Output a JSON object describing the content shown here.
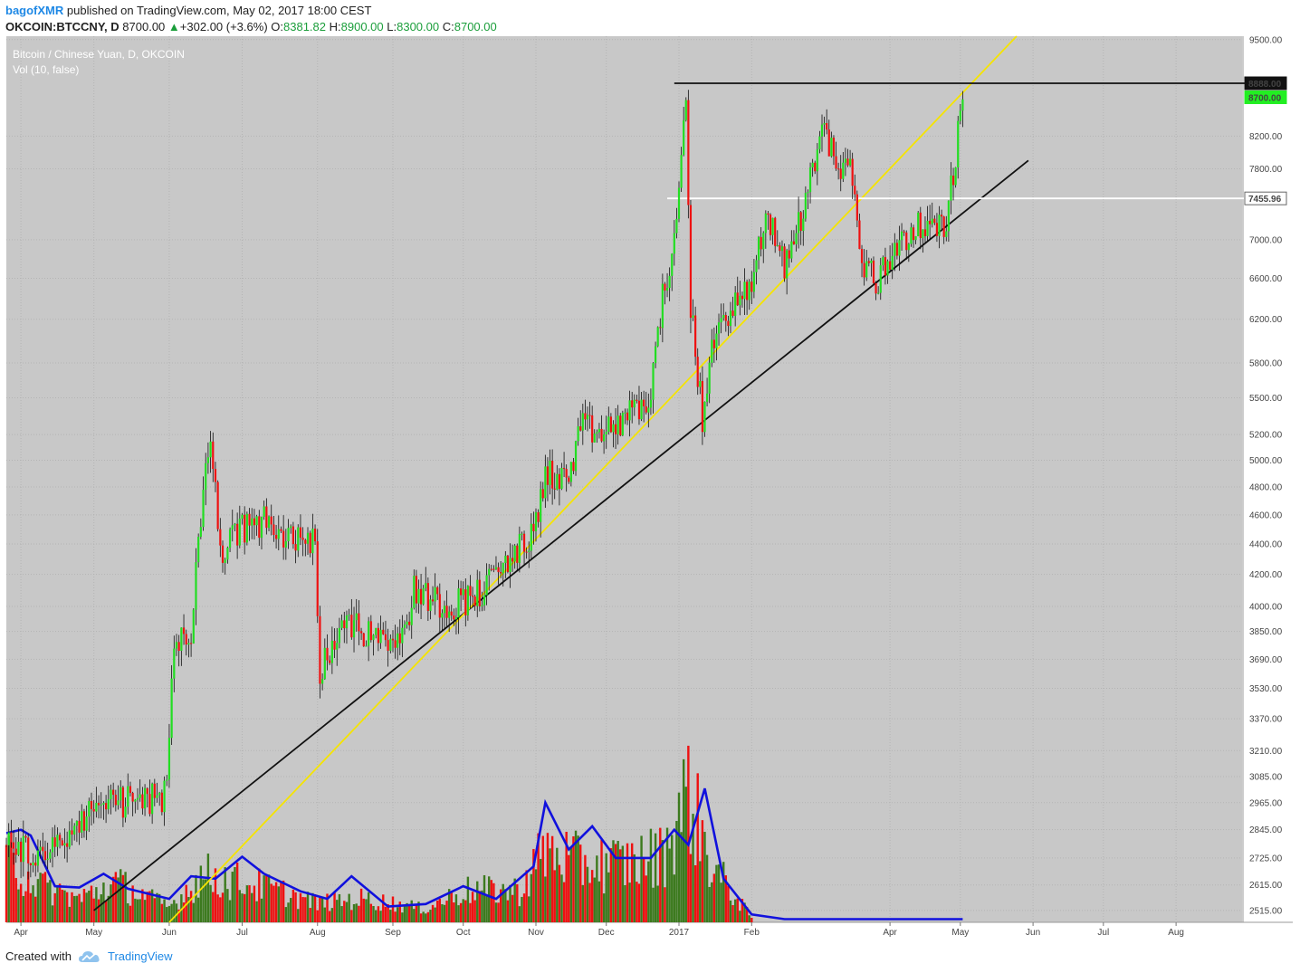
{
  "header": {
    "user": "bagofXMR",
    "text": " published on TradingView.com, May 02, 2017 18:00 CEST"
  },
  "quote": {
    "symbol": "OKCOIN:BTCCNY, D",
    "last": "8700.00",
    "change": "+302.00 (+3.6%)",
    "open": "8381.82",
    "high": "8900.00",
    "low": "8300.00",
    "close": "8700.00",
    "o_label": "O:",
    "h_label": "H:",
    "l_label": "L:",
    "c_label": "C:"
  },
  "chart_title": "Bitcoin / Chinese Yuan, D, OKCOIN",
  "vol_title": "Vol (10, false)",
  "footer": {
    "created_with": "Created with",
    "brand": "TradingView"
  },
  "colors": {
    "plot_bg": "#c8c8c8",
    "up": "#22dd22",
    "down": "#ee1111",
    "vol_up": "#3c7a1e",
    "vol_down": "#ee1111",
    "vol_ma": "#1111dd",
    "trend_black": "#111111",
    "trend_yellow": "#f5e400",
    "level_white": "#ffffff"
  },
  "chart_data": {
    "type": "candlestick",
    "title": "Bitcoin / Chinese Yuan, D, OKCOIN",
    "x_ticks": [
      "Apr",
      "May",
      "Jun",
      "Jul",
      "Aug",
      "Sep",
      "Oct",
      "Nov",
      "Dec",
      "2017",
      "Feb",
      "Apr",
      "May",
      "Jun",
      "Jul",
      "Aug"
    ],
    "y_ticks": [
      9500,
      8200,
      7800,
      7000,
      6600,
      6200,
      5800,
      5500,
      5200,
      5000,
      4800,
      4600,
      4400,
      4200,
      4000,
      3850,
      3690,
      3530,
      3370,
      3210,
      3085,
      2965,
      2845,
      2725,
      2615,
      2515
    ],
    "y_tick_labels": [
      "9500.00",
      "8200.00",
      "7800.00",
      "7000.00",
      "6600.00",
      "6200.00",
      "5800.00",
      "5500.00",
      "5200.00",
      "5000.00",
      "4800.00",
      "4600.00",
      "4400.00",
      "4200.00",
      "4000.00",
      "3850.00",
      "3690.00",
      "3530.00",
      "3370.00",
      "3210.00",
      "3085.00",
      "2965.00",
      "2845.00",
      "2725.00",
      "2615.00",
      "2515.00"
    ],
    "scale": "log",
    "y_range": [
      2470,
      9550
    ],
    "price_labels": {
      "resistance": "8888.00",
      "last": "8700.00",
      "support_level": "7455.96"
    },
    "price_path": [
      [
        "2016-03-26",
        2780
      ],
      [
        "2016-04-10",
        2730
      ],
      [
        "2016-04-25",
        2860
      ],
      [
        "2016-05-05",
        2980
      ],
      [
        "2016-05-20",
        2960
      ],
      [
        "2016-05-31",
        3000
      ],
      [
        "2016-06-03",
        3780
      ],
      [
        "2016-06-10",
        3850
      ],
      [
        "2016-06-16",
        4900
      ],
      [
        "2016-06-18",
        5150
      ],
      [
        "2016-06-22",
        4300
      ],
      [
        "2016-06-30",
        4500
      ],
      [
        "2016-07-10",
        4550
      ],
      [
        "2016-07-20",
        4450
      ],
      [
        "2016-07-31",
        4400
      ],
      [
        "2016-08-02",
        3640
      ],
      [
        "2016-08-10",
        3880
      ],
      [
        "2016-08-25",
        3850
      ],
      [
        "2016-09-05",
        3800
      ],
      [
        "2016-09-10",
        4100
      ],
      [
        "2016-09-25",
        4000
      ],
      [
        "2016-10-10",
        4100
      ],
      [
        "2016-10-20",
        4300
      ],
      [
        "2016-10-31",
        4450
      ],
      [
        "2016-11-05",
        4900
      ],
      [
        "2016-11-15",
        4850
      ],
      [
        "2016-11-20",
        5250
      ],
      [
        "2016-11-30",
        5200
      ],
      [
        "2016-12-10",
        5350
      ],
      [
        "2016-12-20",
        5500
      ],
      [
        "2016-12-25",
        6450
      ],
      [
        "2016-12-30",
        6900
      ],
      [
        "2017-01-04",
        8550
      ],
      [
        "2017-01-06",
        6350
      ],
      [
        "2017-01-11",
        5300
      ],
      [
        "2017-01-15",
        5900
      ],
      [
        "2017-01-20",
        6250
      ],
      [
        "2017-01-31",
        6450
      ],
      [
        "2017-02-08",
        7300
      ],
      [
        "2017-02-15",
        6700
      ],
      [
        "2017-02-25",
        7500
      ],
      [
        "2017-03-03",
        8400
      ],
      [
        "2017-03-08",
        7900
      ],
      [
        "2017-03-15",
        7800
      ],
      [
        "2017-03-20",
        6800
      ],
      [
        "2017-03-26",
        6550
      ],
      [
        "2017-04-05",
        7000
      ],
      [
        "2017-04-15",
        7150
      ],
      [
        "2017-04-22",
        7100
      ],
      [
        "2017-04-26",
        7300
      ],
      [
        "2017-04-28",
        7800
      ],
      [
        "2017-05-01",
        8400
      ],
      [
        "2017-05-02",
        8700
      ]
    ],
    "volume_path": [
      [
        "2016-03-26",
        2780
      ],
      [
        "2016-04-10",
        2640
      ],
      [
        "2016-04-25",
        2580
      ],
      [
        "2016-05-10",
        2660
      ],
      [
        "2016-06-01",
        2540
      ],
      [
        "2016-06-15",
        2700
      ],
      [
        "2016-07-10",
        2640
      ],
      [
        "2016-08-01",
        2560
      ],
      [
        "2016-08-20",
        2580
      ],
      [
        "2016-09-15",
        2530
      ],
      [
        "2016-10-01",
        2620
      ],
      [
        "2016-10-25",
        2620
      ],
      [
        "2016-11-05",
        2830
      ],
      [
        "2016-11-20",
        2760
      ],
      [
        "2016-12-10",
        2760
      ],
      [
        "2016-12-25",
        2800
      ],
      [
        "2017-01-05",
        3150
      ],
      [
        "2017-01-15",
        2740
      ],
      [
        "2017-02-01",
        2490
      ]
    ],
    "volume_ma_path": [
      [
        "2016-03-26",
        2830
      ],
      [
        "2016-04-01",
        2845
      ],
      [
        "2016-04-05",
        2820
      ],
      [
        "2016-04-15",
        2610
      ],
      [
        "2016-04-25",
        2605
      ],
      [
        "2016-05-05",
        2660
      ],
      [
        "2016-05-15",
        2600
      ],
      [
        "2016-06-01",
        2560
      ],
      [
        "2016-06-10",
        2650
      ],
      [
        "2016-06-20",
        2640
      ],
      [
        "2016-07-01",
        2730
      ],
      [
        "2016-07-10",
        2660
      ],
      [
        "2016-07-25",
        2590
      ],
      [
        "2016-08-05",
        2560
      ],
      [
        "2016-08-15",
        2650
      ],
      [
        "2016-08-30",
        2530
      ],
      [
        "2016-09-15",
        2540
      ],
      [
        "2016-10-01",
        2610
      ],
      [
        "2016-10-15",
        2560
      ],
      [
        "2016-10-31",
        2690
      ],
      [
        "2016-11-05",
        2965
      ],
      [
        "2016-11-15",
        2760
      ],
      [
        "2016-11-25",
        2860
      ],
      [
        "2016-12-05",
        2725
      ],
      [
        "2016-12-20",
        2725
      ],
      [
        "2016-12-30",
        2845
      ],
      [
        "2017-01-05",
        2780
      ],
      [
        "2017-01-12",
        3030
      ],
      [
        "2017-01-20",
        2640
      ],
      [
        "2017-02-01",
        2500
      ],
      [
        "2017-02-15",
        2482
      ],
      [
        "2017-05-02",
        2482
      ]
    ],
    "lines": [
      {
        "name": "",
        "color": "#111111",
        "from": [
          "2016-05-01",
          2515
        ],
        "to": [
          "2017-05-30",
          7900
        ]
      },
      {
        "name": "",
        "color": "#f5e400",
        "from": [
          "2016-06-01",
          2470
        ],
        "to": [
          "2017-05-25",
          9550
        ]
      },
      {
        "name": "",
        "color": "#111111",
        "from": [
          "2016-12-30",
          8888
        ],
        "to": [
          "2017-08-31",
          8888
        ]
      },
      {
        "name": "",
        "color": "#ffffff",
        "from": [
          "2016-12-27",
          7455.96
        ],
        "to": [
          "2017-08-31",
          7455.96
        ]
      }
    ]
  }
}
